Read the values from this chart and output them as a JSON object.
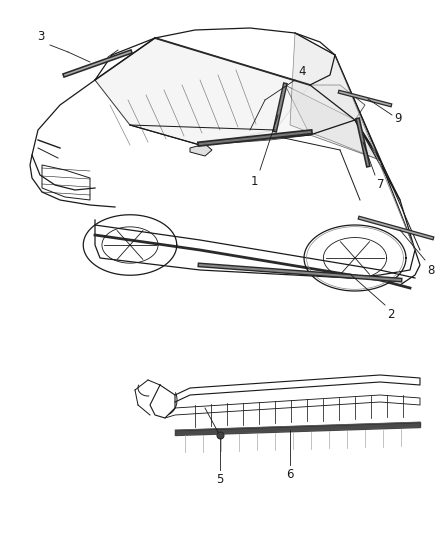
{
  "bg_color": "#ffffff",
  "fig_width": 4.38,
  "fig_height": 5.33,
  "dpi": 100,
  "line_color": "#1a1a1a",
  "gray_color": "#888888",
  "dark_color": "#2a2a2a",
  "label_fontsize": 8.5,
  "callout_lw": 0.6,
  "car_lw": 0.9,
  "molding_lw": 2.2,
  "upper_diagram": {
    "ymin": 0.4,
    "ymax": 1.0
  },
  "lower_diagram": {
    "ymin": 0.0,
    "ymax": 0.38
  }
}
